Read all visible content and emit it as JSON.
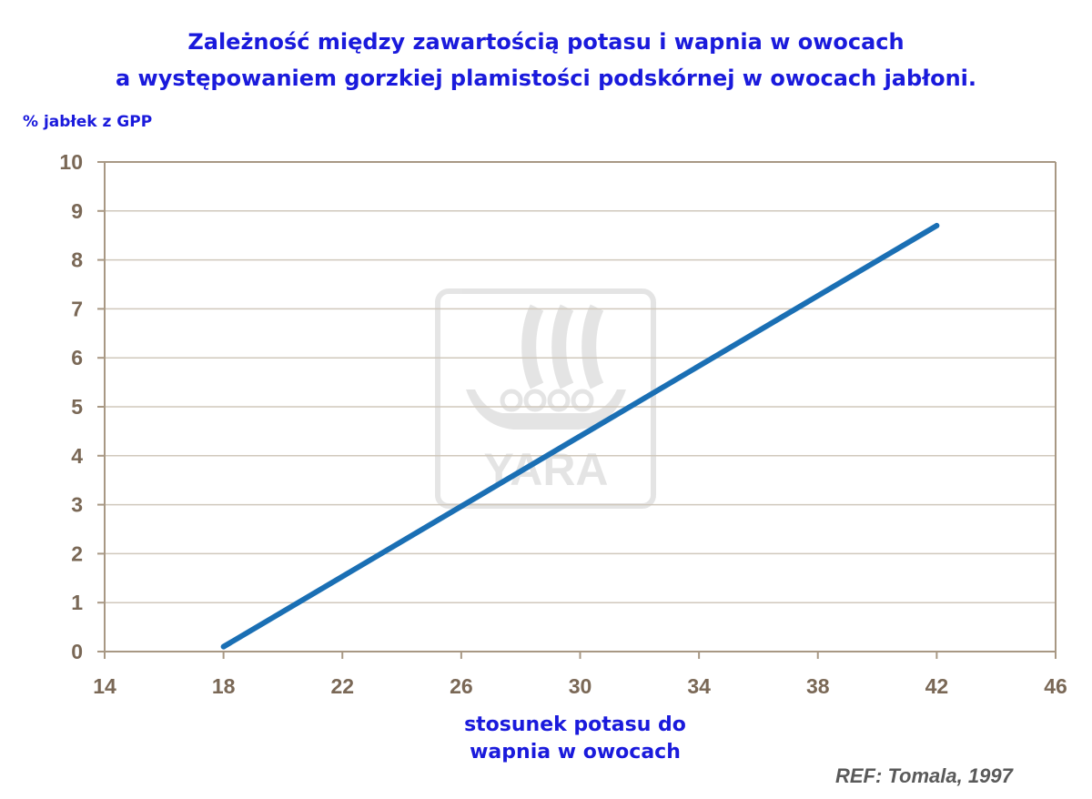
{
  "chart_data": {
    "type": "line",
    "title_line1": "Zależność między zawartością potasu i wapnia w owocach",
    "title_line2": "a występowaniem gorzkiej plamistości podskórnej w owocach jabłoni.",
    "ylabel": "% jabłek z GPP",
    "xlabel_line1": "stosunek potasu do",
    "xlabel_line2": "wapnia w owocach",
    "xlim": [
      14,
      46
    ],
    "ylim": [
      0,
      10
    ],
    "xticks": [
      14,
      18,
      22,
      26,
      30,
      34,
      38,
      42,
      46
    ],
    "yticks": [
      0,
      1,
      2,
      3,
      4,
      5,
      6,
      7,
      8,
      9,
      10
    ],
    "grid": "horizontal",
    "legend": "none",
    "series": [
      {
        "x": [
          18,
          42
        ],
        "y": [
          0.1,
          8.7
        ],
        "color": "#1a6fb4"
      }
    ],
    "source": "REF: Tomala, 1997",
    "watermark": "YARA",
    "colors": {
      "axis": "#a89884",
      "grid": "#d0c8bc",
      "tick_text": "#7a6856",
      "title": "#1a1adc"
    }
  }
}
